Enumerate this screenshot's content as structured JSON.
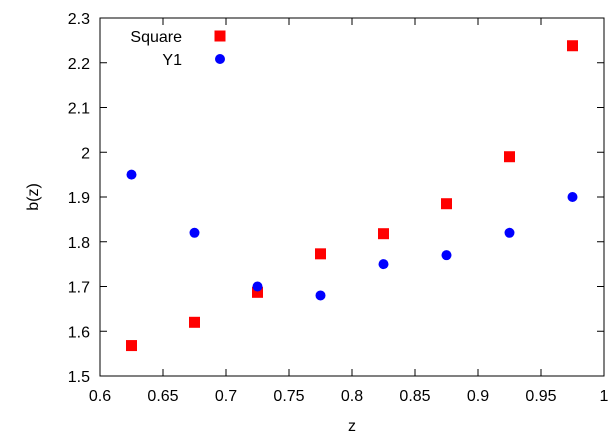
{
  "chart_data": {
    "type": "scatter",
    "title": "",
    "xlabel": "z",
    "ylabel": "b(z)",
    "xlim": [
      0.6,
      1.0
    ],
    "ylim": [
      1.5,
      2.3
    ],
    "x_ticks": [
      "0.6",
      "0.65",
      "0.7",
      "0.75",
      "0.8",
      "0.85",
      "0.9",
      "0.95",
      "1"
    ],
    "y_ticks": [
      "1.5",
      "1.6",
      "1.7",
      "1.8",
      "1.9",
      "2",
      "2.1",
      "2.2",
      "2.3"
    ],
    "grid": false,
    "legend_position": "top-left",
    "series": [
      {
        "name": "Square",
        "marker": "square",
        "color": "#ff0000",
        "points": [
          {
            "x": 0.625,
            "y": 1.568
          },
          {
            "x": 0.675,
            "y": 1.62
          },
          {
            "x": 0.725,
            "y": 1.687
          },
          {
            "x": 0.775,
            "y": 1.773
          },
          {
            "x": 0.825,
            "y": 1.818
          },
          {
            "x": 0.875,
            "y": 1.885
          },
          {
            "x": 0.925,
            "y": 1.99
          },
          {
            "x": 0.975,
            "y": 2.238
          }
        ]
      },
      {
        "name": "Y1",
        "marker": "circle",
        "color": "#0000ff",
        "points": [
          {
            "x": 0.625,
            "y": 1.95
          },
          {
            "x": 0.675,
            "y": 1.82
          },
          {
            "x": 0.725,
            "y": 1.7
          },
          {
            "x": 0.775,
            "y": 1.68
          },
          {
            "x": 0.825,
            "y": 1.75
          },
          {
            "x": 0.875,
            "y": 1.77
          },
          {
            "x": 0.925,
            "y": 1.82
          },
          {
            "x": 0.975,
            "y": 1.9
          }
        ]
      }
    ]
  }
}
